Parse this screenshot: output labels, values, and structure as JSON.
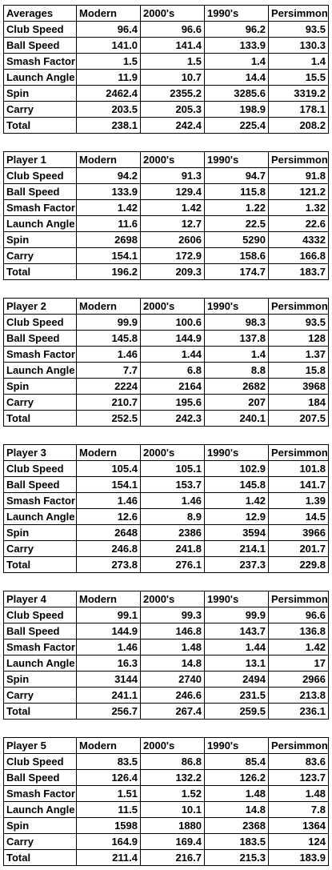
{
  "tables": [
    {
      "header": [
        "Averages",
        "Modern",
        "2000's",
        "1990's",
        "Persimmon"
      ],
      "rows": [
        [
          "Club Speed",
          "96.4",
          "96.6",
          "96.2",
          "93.5"
        ],
        [
          "Ball Speed",
          "141.0",
          "141.4",
          "133.9",
          "130.3"
        ],
        [
          "Smash Factor",
          "1.5",
          "1.5",
          "1.4",
          "1.4"
        ],
        [
          "Launch Angle",
          "11.9",
          "10.7",
          "14.4",
          "15.5"
        ],
        [
          "Spin",
          "2462.4",
          "2355.2",
          "3285.6",
          "3319.2"
        ],
        [
          "Carry",
          "203.5",
          "205.3",
          "198.9",
          "178.1"
        ],
        [
          "Total",
          "238.1",
          "242.4",
          "225.4",
          "208.2"
        ]
      ]
    },
    {
      "header": [
        "Player 1",
        "Modern",
        "2000's",
        "1990's",
        "Persimmon"
      ],
      "rows": [
        [
          "Club Speed",
          "94.2",
          "91.3",
          "94.7",
          "91.8"
        ],
        [
          "Ball Speed",
          "133.9",
          "129.4",
          "115.8",
          "121.2"
        ],
        [
          "Smash Factor",
          "1.42",
          "1.42",
          "1.22",
          "1.32"
        ],
        [
          "Launch Angle",
          "11.6",
          "12.7",
          "22.5",
          "22.6"
        ],
        [
          "Spin",
          "2698",
          "2606",
          "5290",
          "4332"
        ],
        [
          "Carry",
          "154.1",
          "172.9",
          "158.6",
          "166.8"
        ],
        [
          "Total",
          "196.2",
          "209.3",
          "174.7",
          "183.7"
        ]
      ]
    },
    {
      "header": [
        "Player 2",
        "Modern",
        "2000's",
        "1990's",
        "Persimmon"
      ],
      "rows": [
        [
          "Club Speed",
          "99.9",
          "100.6",
          "98.3",
          "93.5"
        ],
        [
          "Ball Speed",
          "145.8",
          "144.9",
          "137.8",
          "128"
        ],
        [
          "Smash Factor",
          "1.46",
          "1.44",
          "1.4",
          "1.37"
        ],
        [
          "Launch Angle",
          "7.7",
          "6.8",
          "8.8",
          "15.8"
        ],
        [
          "Spin",
          "2224",
          "2164",
          "2682",
          "3968"
        ],
        [
          "Carry",
          "210.7",
          "195.6",
          "207",
          "184"
        ],
        [
          "Total",
          "252.5",
          "242.3",
          "240.1",
          "207.5"
        ]
      ]
    },
    {
      "header": [
        "Player 3",
        "Modern",
        "2000's",
        "1990's",
        "Persimmon"
      ],
      "rows": [
        [
          "Club Speed",
          "105.4",
          "105.1",
          "102.9",
          "101.8"
        ],
        [
          "Ball Speed",
          "154.1",
          "153.7",
          "145.8",
          "141.7"
        ],
        [
          "Smash Factor",
          "1.46",
          "1.46",
          "1.42",
          "1.39"
        ],
        [
          "Launch Angle",
          "12.6",
          "8.9",
          "12.9",
          "14.5"
        ],
        [
          "Spin",
          "2648",
          "2386",
          "3594",
          "3966"
        ],
        [
          "Carry",
          "246.8",
          "241.8",
          "214.1",
          "201.7"
        ],
        [
          "Total",
          "273.8",
          "276.1",
          "237.3",
          "229.8"
        ]
      ]
    },
    {
      "header": [
        "Player 4",
        "Modern",
        "2000's",
        "1990's",
        "Persimmon"
      ],
      "rows": [
        [
          "Club Speed",
          "99.1",
          "99.3",
          "99.9",
          "96.6"
        ],
        [
          "Ball Speed",
          "144.9",
          "146.8",
          "143.7",
          "136.8"
        ],
        [
          "Smash Factor",
          "1.46",
          "1.48",
          "1.44",
          "1.42"
        ],
        [
          "Launch Angle",
          "16.3",
          "14.8",
          "13.1",
          "17"
        ],
        [
          "Spin",
          "3144",
          "2740",
          "2494",
          "2966"
        ],
        [
          "Carry",
          "241.1",
          "246.6",
          "231.5",
          "213.8"
        ],
        [
          "Total",
          "256.7",
          "267.4",
          "259.5",
          "236.1"
        ]
      ]
    },
    {
      "header": [
        "Player 5",
        "Modern",
        "2000's",
        "1990's",
        "Persimmon"
      ],
      "rows": [
        [
          "Club Speed",
          "83.5",
          "86.8",
          "85.4",
          "83.6"
        ],
        [
          "Ball Speed",
          "126.4",
          "132.2",
          "126.2",
          "123.7"
        ],
        [
          "Smash Factor",
          "1.51",
          "1.52",
          "1.48",
          "1.48"
        ],
        [
          "Launch Angle",
          "11.5",
          "10.1",
          "14.8",
          "7.8"
        ],
        [
          "Spin",
          "1598",
          "1880",
          "2368",
          "1364"
        ],
        [
          "Carry",
          "164.9",
          "169.4",
          "183.5",
          "124"
        ],
        [
          "Total",
          "211.4",
          "216.7",
          "215.3",
          "183.9"
        ]
      ]
    }
  ]
}
